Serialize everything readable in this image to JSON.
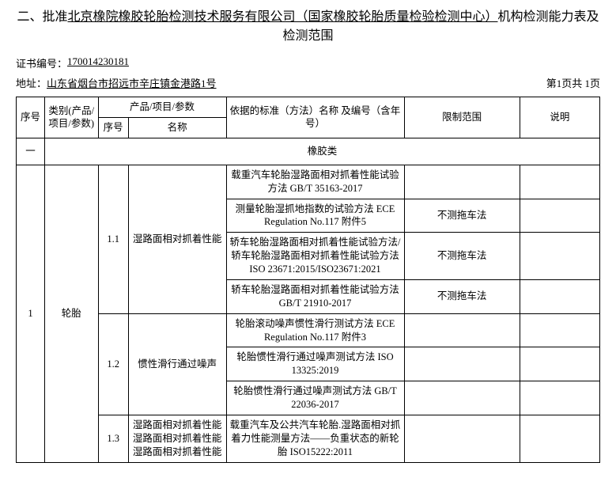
{
  "title_prefix": "二、批准",
  "title_underline": "北京橡院橡胶轮胎检测技术服务有限公司（国家橡胶轮胎质量检验检测中心）",
  "title_suffix": "机构检测能力表及检测范围",
  "cert_label": "证书编号：",
  "cert_value": "170014230181",
  "addr_label": "地址：",
  "addr_value": "山东省烟台市招远市辛庄镇金港路1号",
  "page_info": "第1页共 1页",
  "headers": {
    "seq": "序号",
    "cat": "类别(产品/项目/参数)",
    "param_group": "产品/项目/参数",
    "sub_seq": "序号",
    "sub_name": "名称",
    "standard": "依据的标准（方法）名称\n及编号（含年号）",
    "limit": "限制范围",
    "note": "说明"
  },
  "category_seq": "一",
  "category_name": "橡胶类",
  "main_seq": "1",
  "main_cat": "轮胎",
  "rows": [
    {
      "sub": "1.1",
      "name": "湿路面相对抓着性能",
      "std": "载重汽车轮胎湿路面相对抓着性能试验方法 GB/T 35163-2017",
      "limit": "",
      "note": ""
    },
    {
      "std": "测量轮胎湿抓地指数的试验方法 ECE Regulation No.117 附件5",
      "limit": "不测拖车法",
      "note": ""
    },
    {
      "std": "轿车轮胎湿路面相对抓着性能试验方法/轿车轮胎湿路面相对抓着性能试验方法 ISO 23671:2015/ISO23671:2021",
      "limit": "不测拖车法",
      "note": ""
    },
    {
      "std": "轿车轮胎湿路面相对抓着性能试验方法 GB/T 21910-2017",
      "limit": "不测拖车法",
      "note": ""
    },
    {
      "sub": "1.2",
      "name": "惯性滑行通过噪声",
      "std": "轮胎滚动噪声惯性滑行测试方法 ECE Regulation No.117 附件3",
      "limit": "",
      "note": ""
    },
    {
      "std": "轮胎惯性滑行通过噪声测试方法 ISO 13325:2019",
      "limit": "",
      "note": ""
    },
    {
      "std": "轮胎惯性滑行通过噪声测试方法 GB/T 22036-2017",
      "limit": "",
      "note": ""
    },
    {
      "sub": "1.3",
      "name": "湿路面相对抓着性能 湿路面相对抓着性能 湿路面相对抓着性能",
      "std": "载重汽车及公共汽车轮胎.湿路面相对抓着力性能测量方法——负重状态的新轮胎 ISO15222:2011",
      "limit": "",
      "note": ""
    }
  ]
}
